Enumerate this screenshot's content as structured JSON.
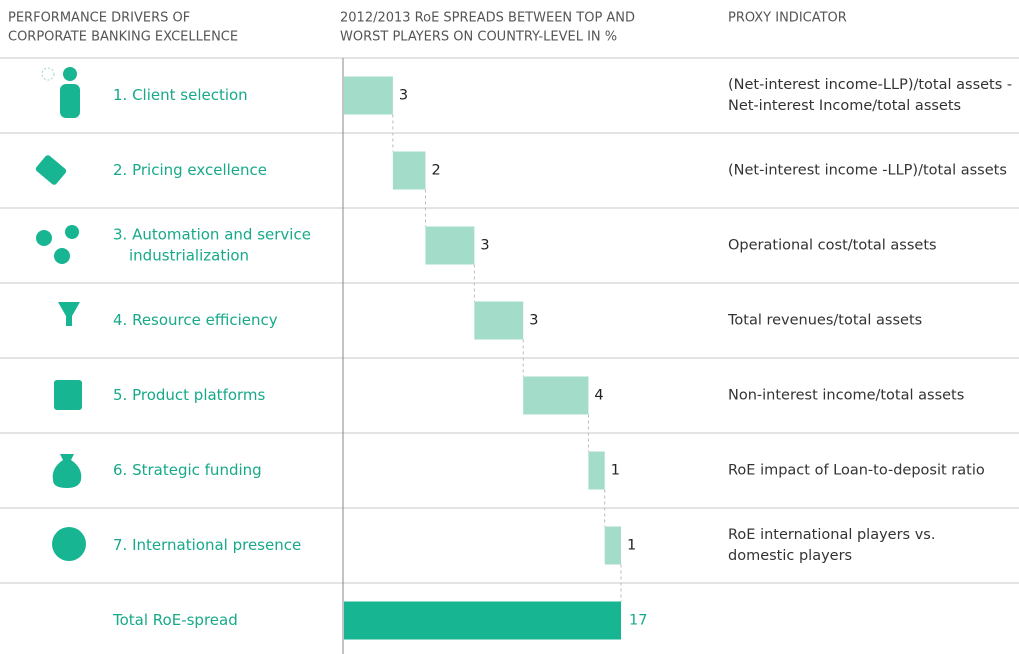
{
  "chart_data": {
    "type": "waterfall",
    "column_headers": [
      [
        "PERFORMANCE DRIVERS OF",
        "CORPORATE BANKING EXCELLENCE"
      ],
      [
        "2012/2013 RoE SPREADS BETWEEN TOP AND",
        "WORST PLAYERS ON COUNTRY-LEVEL IN %"
      ],
      [
        "PROXY INDICATOR"
      ]
    ],
    "categories": [
      [
        "1. Client selection"
      ],
      [
        "2. Pricing excellence"
      ],
      [
        "3. Automation and service",
        "industrialization"
      ],
      [
        "4. Resource efficiency"
      ],
      [
        "5. Product platforms"
      ],
      [
        "6. Strategic funding"
      ],
      [
        "7. International presence"
      ]
    ],
    "values": [
      3,
      2,
      3,
      3,
      4,
      1,
      1
    ],
    "proxy_indicators": [
      [
        "(Net-interest income-LLP)/total assets -",
        "Net-interest Income/total assets"
      ],
      [
        "(Net-interest income -LLP)/total assets"
      ],
      [
        "Operational cost/total assets"
      ],
      [
        "Total revenues/total assets"
      ],
      [
        "Non-interest income/total assets"
      ],
      [
        "RoE impact of Loan-to-deposit ratio"
      ],
      [
        "RoE international players vs.",
        "domestic players"
      ]
    ],
    "color": "#a3dcc9",
    "total": {
      "label": "Total RoE-spread",
      "value": 17,
      "color": "#17b592"
    }
  }
}
